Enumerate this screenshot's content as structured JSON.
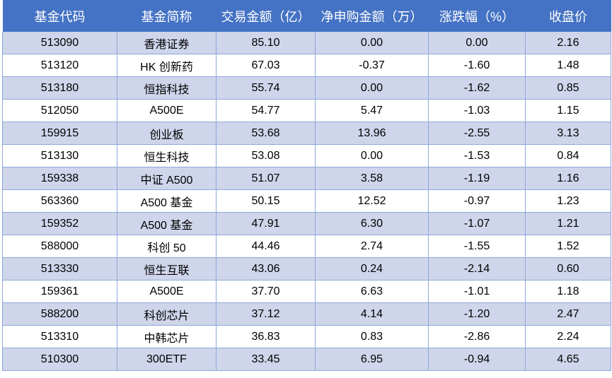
{
  "table": {
    "header": [
      "基金代码",
      "基金简称",
      "交易金额（亿）",
      "净申购金额（万）",
      "涨跌幅（%）",
      "收盘价"
    ],
    "rows": [
      [
        "513090",
        "香港证券",
        "85.10",
        "0.00",
        "0.00",
        "2.16"
      ],
      [
        "513120",
        "HK 创新药",
        "67.03",
        "-0.37",
        "-1.60",
        "1.48"
      ],
      [
        "513180",
        "恒指科技",
        "55.74",
        "0.00",
        "-1.62",
        "0.85"
      ],
      [
        "512050",
        "A500E",
        "54.77",
        "5.47",
        "-1.03",
        "1.15"
      ],
      [
        "159915",
        "创业板",
        "53.68",
        "13.96",
        "-2.55",
        "3.13"
      ],
      [
        "513130",
        "恒生科技",
        "53.08",
        "0.00",
        "-1.53",
        "0.84"
      ],
      [
        "159338",
        "中证 A500",
        "51.07",
        "3.58",
        "-1.19",
        "1.16"
      ],
      [
        "563360",
        "A500 基金",
        "50.15",
        "12.52",
        "-0.97",
        "1.23"
      ],
      [
        "159352",
        "A500 基金",
        "47.91",
        "6.30",
        "-1.07",
        "1.21"
      ],
      [
        "588000",
        "科创 50",
        "44.46",
        "2.74",
        "-1.55",
        "1.52"
      ],
      [
        "513330",
        "恒生互联",
        "43.06",
        "0.24",
        "-2.14",
        "0.60"
      ],
      [
        "159361",
        "A500E",
        "37.70",
        "6.63",
        "-1.01",
        "1.18"
      ],
      [
        "588200",
        "科创芯片",
        "37.12",
        "4.14",
        "-1.20",
        "2.47"
      ],
      [
        "513310",
        "中韩芯片",
        "36.83",
        "0.83",
        "-2.86",
        "2.24"
      ],
      [
        "510300",
        "300ETF",
        "33.45",
        "6.95",
        "-0.94",
        "4.65"
      ]
    ]
  }
}
